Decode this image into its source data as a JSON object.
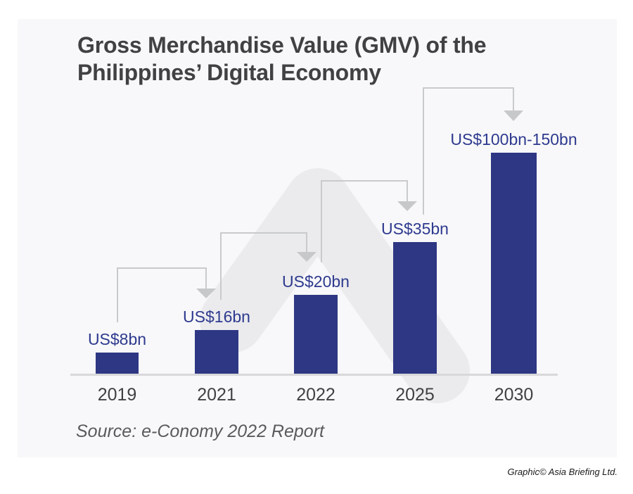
{
  "title": {
    "line1": "Gross Merchandise Value (GMV) of the",
    "line2": "Philippines’ Digital Economy"
  },
  "chart_data": {
    "type": "bar",
    "title": "Gross Merchandise Value (GMV) of the Philippines’ Digital Economy",
    "categories": [
      "2019",
      "2021",
      "2022",
      "2025",
      "2030"
    ],
    "values": [
      8,
      16,
      20,
      35,
      [
        100,
        150
      ]
    ],
    "value_labels": [
      "US$8bn",
      "US$16bn",
      "US$20bn",
      "US$35bn",
      "US$100bn-150bn"
    ],
    "xlabel": "",
    "ylabel": "",
    "grid": false,
    "legend": false,
    "bar_color": "#2d3783",
    "value_label_color": "#2e3a8e"
  },
  "source_note": "Source: e-Conomy 2022 Report",
  "credit": "Graphic© Asia Briefing Ltd.",
  "colors": {
    "page_bg": "#ffffff",
    "panel_bg": "#f8f8fa",
    "watermark": "#ebebee",
    "connector": "#c9cacc",
    "arrowhead": "#c7c8ca",
    "axis": "#d8d8da",
    "bar": "#2d3783",
    "value_label": "#2e3a8e",
    "title_text": "#414042",
    "source_text": "#595a5c"
  }
}
